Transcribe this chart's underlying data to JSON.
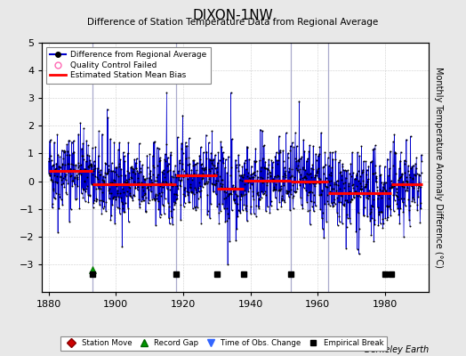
{
  "title": "DIXON-1NW",
  "subtitle": "Difference of Station Temperature Data from Regional Average",
  "ylabel": "Monthly Temperature Anomaly Difference (°C)",
  "xlim": [
    1878,
    1993
  ],
  "ylim": [
    -4,
    5
  ],
  "yticks": [
    -3,
    -2,
    -1,
    0,
    1,
    2,
    3,
    4,
    5
  ],
  "xticks": [
    1880,
    1900,
    1920,
    1940,
    1960,
    1980
  ],
  "background_color": "#e8e8e8",
  "plot_bg_color": "#ffffff",
  "seed": 42,
  "start_year": 1880,
  "end_year": 1991,
  "bias_segments": [
    {
      "x_start": 1880,
      "x_end": 1893,
      "bias": 0.38
    },
    {
      "x_start": 1893,
      "x_end": 1918,
      "bias": -0.1
    },
    {
      "x_start": 1918,
      "x_end": 1930,
      "bias": 0.22
    },
    {
      "x_start": 1930,
      "x_end": 1938,
      "bias": -0.28
    },
    {
      "x_start": 1938,
      "x_end": 1952,
      "bias": 0.02
    },
    {
      "x_start": 1952,
      "x_end": 1963,
      "bias": -0.02
    },
    {
      "x_start": 1963,
      "x_end": 1982,
      "bias": -0.42
    },
    {
      "x_start": 1982,
      "x_end": 1991,
      "bias": -0.12
    }
  ],
  "vertical_lines": [
    1893,
    1918,
    1952,
    1963
  ],
  "event_markers": {
    "record_gap": [
      [
        1893,
        -3.2
      ]
    ],
    "empirical_break": [
      [
        1893,
        -3.35
      ],
      [
        1918,
        -3.35
      ],
      [
        1930,
        -3.35
      ],
      [
        1938,
        -3.35
      ],
      [
        1952,
        -3.35
      ],
      [
        1980,
        -3.35
      ],
      [
        1982,
        -3.35
      ]
    ]
  },
  "line_color": "#0000cc",
  "dot_color": "#000000",
  "bias_color": "#ff0000",
  "vline_color": "#aaaacc",
  "noise_std": 0.7,
  "spike_prob": 0.015,
  "spike_scale": 3.0
}
